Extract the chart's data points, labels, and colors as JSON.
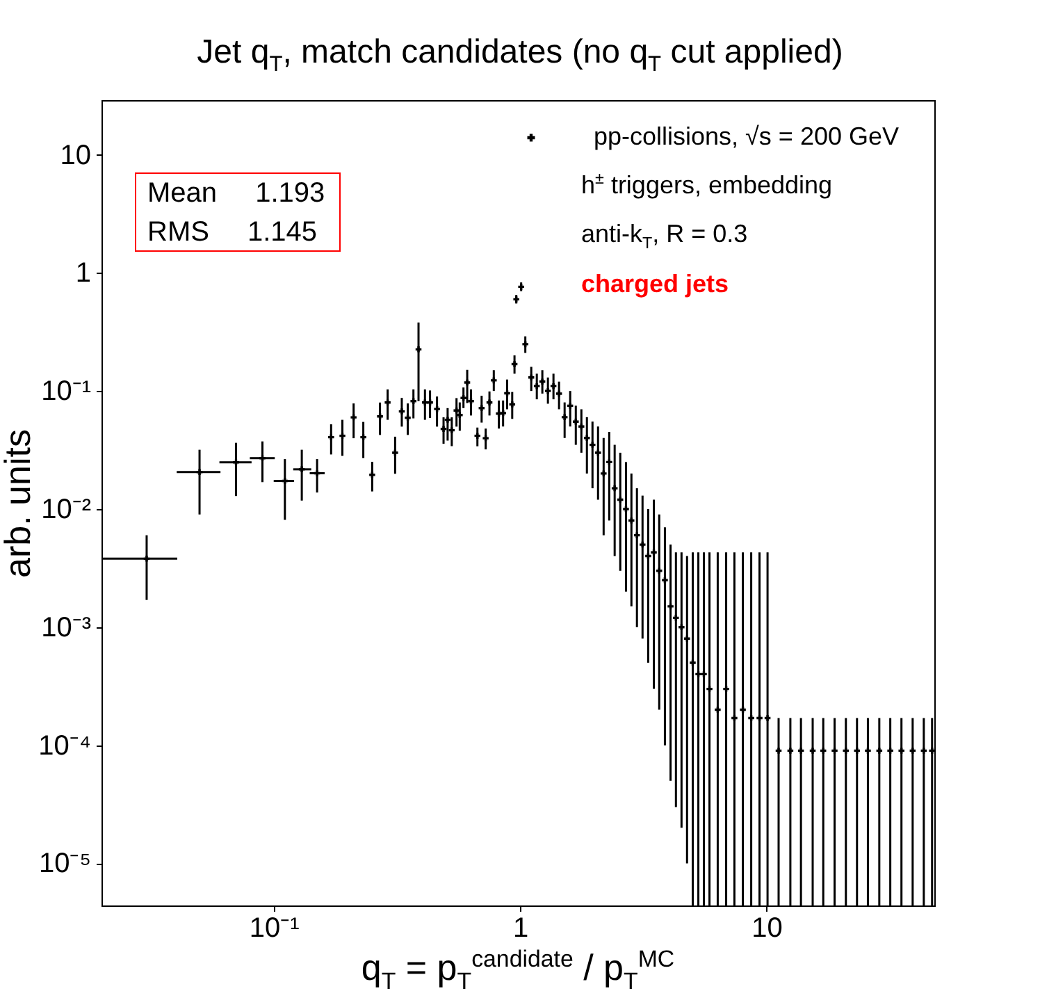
{
  "chart_data": {
    "type": "scatter",
    "title": "Jet q$_{T}$, match candidates (no q$_{T}$ cut applied)",
    "xlabel": "q$_{T}$ = p$_{T}$$^{candidate}$ / p$_{T}$$^{MC}$",
    "ylabel": "arb. units",
    "annotations": [
      "Mean 1.193",
      "RMS 1.145",
      "h$^{±}$ triggers, embedding",
      "anti-k$_{T}$, R = 0.3",
      "charged jets"
    ],
    "log": "xy",
    "marker": "cross",
    "legend": "top right",
    "xlim": [
      0.02,
      48
    ],
    "ylim": [
      4.4e-06,
      29
    ],
    "xticks": [
      {
        "value": 0.1,
        "label": "10⁻¹"
      },
      1,
      10
    ],
    "yticks": [
      {
        "value": 1e-05,
        "label": "10⁻⁵"
      },
      {
        "value": 0.0001,
        "label": "10⁻⁴"
      },
      {
        "value": 0.001,
        "label": "10⁻³"
      },
      {
        "value": 0.01,
        "label": "10⁻²"
      },
      {
        "value": 0.1,
        "label": "10⁻¹"
      },
      1,
      10
    ],
    "series": [
      {
        "name": "pp-collisions, √s = 200 GeV",
        "color": "#000000",
        "x": [
          0.0305,
          0.05,
          0.0703,
          0.09,
          0.111,
          0.13,
          0.15,
          0.171,
          0.19,
          0.211,
          0.231,
          0.251,
          0.27,
          0.29,
          0.311,
          0.331,
          0.35,
          0.369,
          0.387,
          0.411,
          0.431,
          0.46,
          0.489,
          0.508,
          0.528,
          0.552,
          0.569,
          0.589,
          0.61,
          0.632,
          0.671,
          0.698,
          0.725,
          0.751,
          0.782,
          0.82,
          0.853,
          0.886,
          0.929,
          0.949,
          0.965,
          1.01,
          1.05,
          1.11,
          1.169,
          1.231,
          1.297,
          1.366,
          1.439,
          1.516,
          1.597,
          1.683,
          1.773,
          1.867,
          1.967,
          2.072,
          2.183,
          2.3,
          2.42,
          2.55,
          2.69,
          2.83,
          2.98,
          3.14,
          3.31,
          3.49,
          3.67,
          3.87,
          4.08,
          4.29,
          4.52,
          4.76,
          5.02,
          5.29,
          5.57,
          5.87,
          6.34,
          6.86,
          7.41,
          8.02,
          8.67,
          9.37,
          10.1,
          11.2,
          12.5,
          13.8,
          15.4,
          17,
          18.9,
          21,
          23.3,
          25.8,
          28.7,
          31.8,
          35.3,
          39.2,
          43.5,
          47
        ],
        "values": [
          0.0038,
          0.0206,
          0.0249,
          0.027,
          0.0173,
          0.0217,
          0.0201,
          0.0406,
          0.0417,
          0.0598,
          0.0406,
          0.0195,
          0.0609,
          0.0798,
          0.03,
          0.0671,
          0.0593,
          0.082,
          0.225,
          0.0798,
          0.0798,
          0.0703,
          0.0477,
          0.057,
          0.0465,
          0.0684,
          0.0626,
          0.0873,
          0.118,
          0.082,
          0.0417,
          0.0716,
          0.0398,
          0.0798,
          0.123,
          0.0643,
          0.065,
          0.0955,
          0.0769,
          0.169,
          0.597,
          0.762,
          0.249,
          0.13,
          0.11,
          0.12,
          0.1,
          0.11,
          0.095,
          0.06,
          0.075,
          0.055,
          0.05,
          0.04,
          0.035,
          0.03,
          0.02,
          0.025,
          0.015,
          0.012,
          0.01,
          0.008,
          0.006,
          0.005,
          0.004,
          0.0043,
          0.003,
          0.0025,
          0.0015,
          0.0012,
          0.001,
          0.0008,
          0.0005,
          0.0004,
          0.0004,
          0.0003,
          0.0002,
          0.0003,
          0.00017,
          0.0002,
          0.00017,
          0.00017,
          0.00017,
          9e-05,
          9e-05,
          9e-05,
          9e-05,
          9e-05,
          9e-05,
          9e-05,
          9e-05,
          9e-05,
          9e-05,
          9e-05,
          9e-05,
          9e-05,
          9e-05,
          9e-05
        ],
        "errors": [
          [
            0.0017,
            0.006
          ],
          [
            0.009,
            0.0318
          ],
          [
            0.0129,
            0.0364
          ],
          [
            0.0169,
            0.0374
          ],
          [
            0.0081,
            0.0265
          ],
          [
            0.0118,
            0.0318
          ],
          [
            0.0138,
            0.0265
          ],
          [
            0.029,
            0.0522
          ],
          [
            0.0282,
            0.057
          ],
          [
            0.0398,
            0.0784
          ],
          [
            0.027,
            0.0547
          ],
          [
            0.0141,
            0.0251
          ],
          [
            0.0424,
            0.0798
          ],
          [
            0.057,
            0.103
          ],
          [
            0.0199,
            0.041
          ],
          [
            0.0499,
            0.0873
          ],
          [
            0.0424,
            0.0784
          ],
          [
            0.0586,
            0.103
          ],
          [
            0.082,
            0.38
          ],
          [
            0.057,
            0.103
          ],
          [
            0.059,
            0.101
          ],
          [
            0.0499,
            0.0897
          ],
          [
            0.0357,
            0.0598
          ],
          [
            0.038,
            0.0716
          ],
          [
            0.0341,
            0.0598
          ],
          [
            0.0499,
            0.087
          ],
          [
            0.046,
            0.08
          ],
          [
            0.0716,
            0.107
          ],
          [
            0.079,
            0.151
          ],
          [
            0.062,
            0.103
          ],
          [
            0.034,
            0.049
          ],
          [
            0.054,
            0.091
          ],
          [
            0.032,
            0.048
          ],
          [
            0.062,
            0.099
          ],
          [
            0.1,
            0.15
          ],
          [
            0.048,
            0.083
          ],
          [
            0.05,
            0.083
          ],
          [
            0.07,
            0.125
          ],
          [
            0.058,
            0.098
          ],
          [
            0.14,
            0.2
          ],
          [
            0.55,
            0.65
          ],
          [
            0.7,
            0.83
          ],
          [
            0.21,
            0.29
          ],
          [
            0.1,
            0.16
          ],
          [
            0.085,
            0.14
          ],
          [
            0.095,
            0.15
          ],
          [
            0.078,
            0.13
          ],
          [
            0.085,
            0.14
          ],
          [
            0.07,
            0.12
          ],
          [
            0.04,
            0.08
          ],
          [
            0.05,
            0.1
          ],
          [
            0.035,
            0.075
          ],
          [
            0.03,
            0.07
          ],
          [
            0.02,
            0.06
          ],
          [
            0.015,
            0.055
          ],
          [
            0.012,
            0.05
          ],
          [
            0.006,
            0.04
          ],
          [
            0.008,
            0.045
          ],
          [
            0.004,
            0.035
          ],
          [
            0.003,
            0.03
          ],
          [
            0.002,
            0.025
          ],
          [
            0.0015,
            0.02
          ],
          [
            0.001,
            0.015
          ],
          [
            0.0008,
            0.013
          ],
          [
            0.0005,
            0.01
          ],
          [
            0.0003,
            0.012
          ],
          [
            0.0002,
            0.009
          ],
          [
            0.0001,
            0.007
          ],
          [
            5e-05,
            0.005
          ],
          [
            3e-05,
            0.0043
          ],
          [
            2e-05,
            0.0043
          ],
          [
            1e-05,
            0.004
          ],
          [
            4.4e-06,
            0.0043
          ],
          [
            4.4e-06,
            0.0043
          ],
          [
            4.4e-06,
            0.0043
          ],
          [
            4.4e-06,
            0.0043
          ],
          [
            4.4e-06,
            0.0043
          ],
          [
            4.4e-06,
            0.0043
          ],
          [
            4.4e-06,
            0.0043
          ],
          [
            4.4e-06,
            0.0043
          ],
          [
            4.4e-06,
            0.0043
          ],
          [
            4.4e-06,
            0.0043
          ],
          [
            4.4e-06,
            0.0043
          ],
          [
            4.4e-06,
            0.00017
          ],
          [
            4.4e-06,
            0.00017
          ],
          [
            4.4e-06,
            0.00017
          ],
          [
            4.4e-06,
            0.00017
          ],
          [
            4.4e-06,
            0.00017
          ],
          [
            4.4e-06,
            0.00017
          ],
          [
            4.4e-06,
            0.00017
          ],
          [
            4.4e-06,
            0.00017
          ],
          [
            4.4e-06,
            0.00017
          ],
          [
            4.4e-06,
            0.00017
          ],
          [
            4.4e-06,
            0.00017
          ],
          [
            4.4e-06,
            0.00017
          ],
          [
            4.4e-06,
            0.00017
          ],
          [
            4.4e-06,
            0.00017
          ],
          [
            4.4e-06,
            0.00017
          ]
        ],
        "xerrors": [
          [
            0.02,
            0.0406
          ],
          [
            0.0404,
            0.0608
          ],
          [
            0.0602,
            0.0813
          ],
          [
            0.08,
            0.101
          ],
          [
            0.1,
            0.121
          ],
          [
            0.12,
            0.142
          ],
          [
            0.14,
            0.161
          ],
          null,
          null,
          null,
          null,
          null,
          null,
          null,
          null,
          null,
          null,
          null,
          null,
          null,
          null,
          null,
          null,
          null,
          null,
          null,
          null,
          null,
          null,
          null,
          null,
          null,
          null,
          null,
          null,
          null,
          null,
          null,
          null,
          null,
          null,
          null,
          null,
          null,
          null,
          null,
          null,
          null,
          null,
          null,
          null,
          null,
          null,
          null,
          null,
          null,
          null,
          null,
          null,
          null,
          null,
          null,
          null,
          null,
          null,
          null,
          null,
          null,
          null,
          null,
          null,
          null,
          null,
          null,
          null,
          null,
          null,
          null,
          null,
          null,
          null,
          null,
          null,
          null,
          null,
          null,
          null,
          null,
          null,
          null,
          null,
          null,
          null,
          null,
          null,
          null,
          null,
          null
        ]
      }
    ]
  }
}
